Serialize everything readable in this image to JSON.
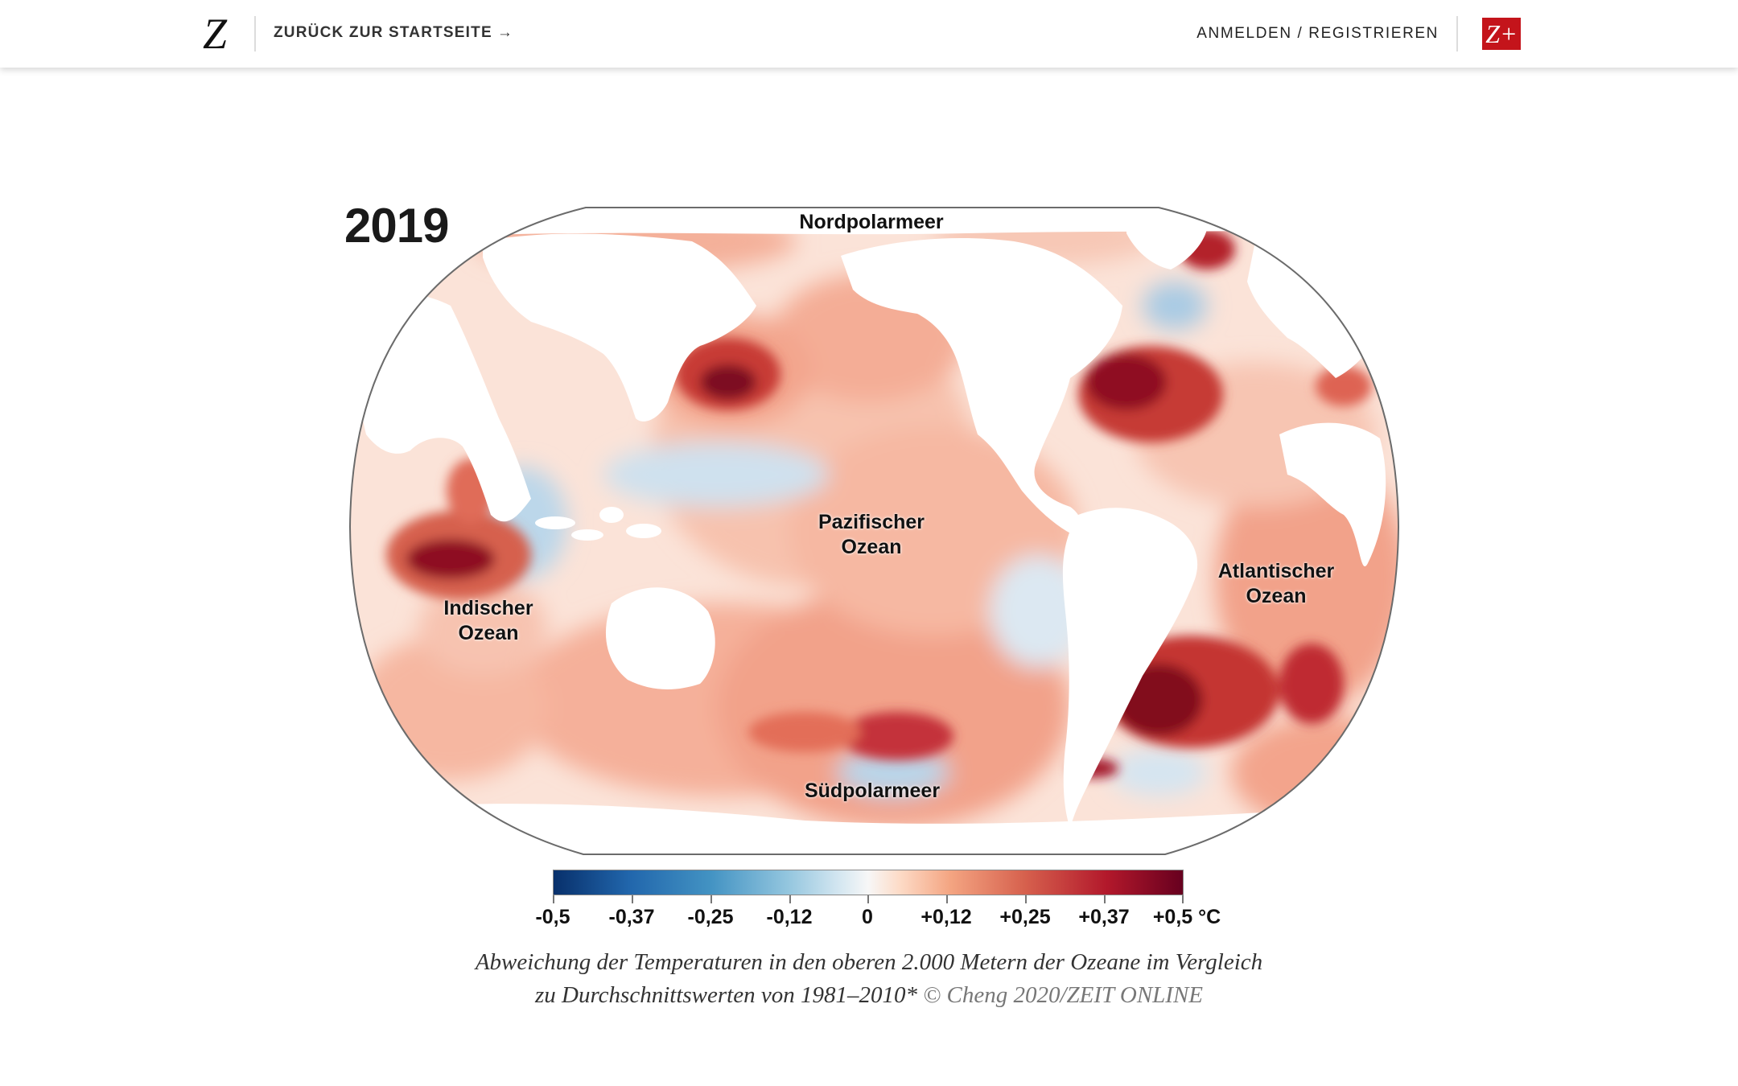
{
  "header": {
    "logo": "Z",
    "back_label": "ZURÜCK ZUR STARTSEITE",
    "back_arrow": "→",
    "login_label": "ANMELDEN / REGISTRIEREN",
    "zplus_label": "Z+"
  },
  "figure": {
    "year": "2019",
    "labels": {
      "arctic": "Nordpolarmeer",
      "pacific_1": "Pazifischer",
      "pacific_2": "Ozean",
      "atlantic_1": "Atlantischer",
      "atlantic_2": "Ozean",
      "indian_1": "Indischer",
      "indian_2": "Ozean",
      "southern": "Südpolarmeer"
    },
    "colorbar": {
      "ticks": [
        "-0,5",
        "-0,37",
        "-0,25",
        "-0,12",
        "0",
        "+0,12",
        "+0,25",
        "+0,37",
        "+0,5 °C"
      ],
      "min": -0.5,
      "max": 0.5,
      "colors": [
        "#08306b",
        "#2166ac",
        "#4393c3",
        "#92c5de",
        "#f7f7f7",
        "#f4a582",
        "#d6604d",
        "#b2182b",
        "#67001f"
      ]
    },
    "caption": {
      "line1": "Abweichung der Temperaturen in den oberen 2.000 Metern der Ozeane im Vergleich",
      "line2": "zu Durchschnittswerten von 1981–2010*",
      "credit": "© Cheng 2020/ZEIT ONLINE"
    }
  }
}
